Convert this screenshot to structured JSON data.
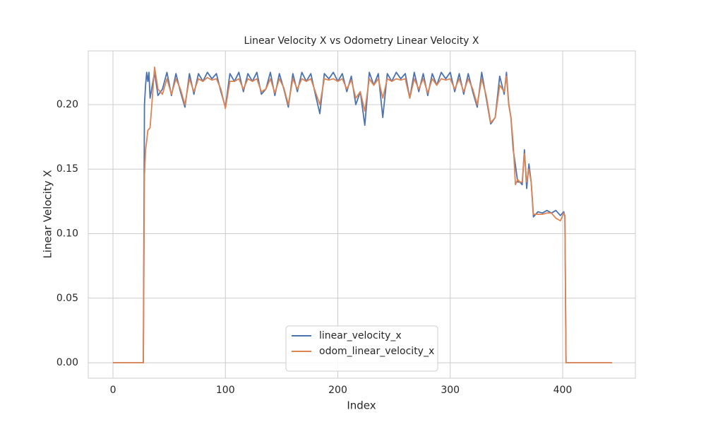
{
  "chart_data": {
    "type": "line",
    "title": "Linear Velocity X vs Odometry Linear Velocity X",
    "xlabel": "Index",
    "ylabel": "Linear Velocity X",
    "x": [
      0,
      27,
      28,
      29,
      30,
      31,
      32,
      33,
      35,
      37,
      40,
      44,
      48,
      52,
      56,
      60,
      64,
      68,
      72,
      76,
      80,
      84,
      88,
      92,
      96,
      100,
      104,
      108,
      112,
      116,
      120,
      124,
      128,
      132,
      136,
      140,
      144,
      148,
      152,
      156,
      160,
      164,
      168,
      172,
      176,
      180,
      184,
      188,
      192,
      196,
      200,
      204,
      208,
      212,
      216,
      220,
      224,
      228,
      232,
      236,
      240,
      244,
      248,
      252,
      256,
      260,
      264,
      268,
      272,
      276,
      280,
      284,
      288,
      292,
      296,
      300,
      304,
      308,
      312,
      316,
      320,
      324,
      328,
      332,
      336,
      340,
      344,
      348,
      350,
      352,
      354,
      356,
      358,
      360,
      362,
      364,
      366,
      368,
      370,
      372,
      374,
      378,
      382,
      386,
      390,
      394,
      398,
      401,
      402,
      403,
      444
    ],
    "series": [
      {
        "name": "linear_velocity_x",
        "color": "#4c72b0",
        "values": [
          0,
          0,
          0.2,
          0.215,
          0.225,
          0.218,
          0.225,
          0.205,
          0.215,
          0.225,
          0.207,
          0.212,
          0.225,
          0.207,
          0.224,
          0.21,
          0.198,
          0.224,
          0.208,
          0.224,
          0.218,
          0.225,
          0.22,
          0.224,
          0.21,
          0.198,
          0.224,
          0.218,
          0.225,
          0.21,
          0.224,
          0.218,
          0.225,
          0.208,
          0.212,
          0.225,
          0.207,
          0.224,
          0.212,
          0.198,
          0.224,
          0.21,
          0.225,
          0.218,
          0.224,
          0.208,
          0.193,
          0.224,
          0.22,
          0.225,
          0.218,
          0.224,
          0.21,
          0.222,
          0.2,
          0.21,
          0.184,
          0.225,
          0.215,
          0.224,
          0.19,
          0.224,
          0.218,
          0.225,
          0.22,
          0.224,
          0.205,
          0.225,
          0.21,
          0.224,
          0.207,
          0.224,
          0.215,
          0.225,
          0.22,
          0.225,
          0.21,
          0.224,
          0.208,
          0.224,
          0.21,
          0.198,
          0.225,
          0.205,
          0.185,
          0.19,
          0.222,
          0.208,
          0.225,
          0.201,
          0.19,
          0.165,
          0.153,
          0.14,
          0.14,
          0.138,
          0.165,
          0.135,
          0.154,
          0.14,
          0.113,
          0.117,
          0.116,
          0.118,
          0.116,
          0.118,
          0.114,
          0.117,
          0.113,
          0,
          0
        ]
      },
      {
        "name": "odom_linear_velocity_x",
        "color": "#dd8452",
        "values": [
          0,
          0,
          0.145,
          0.165,
          0.172,
          0.18,
          0.181,
          0.182,
          0.205,
          0.229,
          0.212,
          0.208,
          0.22,
          0.208,
          0.22,
          0.212,
          0.2,
          0.22,
          0.21,
          0.22,
          0.218,
          0.221,
          0.219,
          0.22,
          0.212,
          0.197,
          0.218,
          0.218,
          0.22,
          0.212,
          0.22,
          0.218,
          0.22,
          0.21,
          0.212,
          0.22,
          0.209,
          0.22,
          0.213,
          0.2,
          0.22,
          0.212,
          0.22,
          0.218,
          0.22,
          0.21,
          0.2,
          0.22,
          0.219,
          0.22,
          0.218,
          0.22,
          0.212,
          0.219,
          0.205,
          0.21,
          0.195,
          0.22,
          0.215,
          0.22,
          0.205,
          0.22,
          0.218,
          0.22,
          0.219,
          0.22,
          0.205,
          0.22,
          0.212,
          0.22,
          0.209,
          0.22,
          0.215,
          0.22,
          0.219,
          0.22,
          0.212,
          0.22,
          0.21,
          0.22,
          0.212,
          0.2,
          0.22,
          0.207,
          0.186,
          0.19,
          0.215,
          0.21,
          0.222,
          0.2,
          0.19,
          0.17,
          0.138,
          0.142,
          0.14,
          0.14,
          0.162,
          0.14,
          0.15,
          0.14,
          0.115,
          0.115,
          0.115,
          0.116,
          0.116,
          0.112,
          0.11,
          0.116,
          0.114,
          0,
          0
        ]
      }
    ],
    "xlim": [
      -22,
      464.7
    ],
    "xticks": [
      0,
      100,
      200,
      300,
      400
    ],
    "ylim": [
      -0.012,
      0.2416
    ],
    "yticks": [
      {
        "value": 0,
        "label": "0.00"
      },
      0.05,
      {
        "value": 0.1,
        "label": "0.10"
      },
      0.15,
      {
        "value": 0.2,
        "label": "0.20"
      }
    ],
    "grid": true,
    "legend": "lower center"
  }
}
